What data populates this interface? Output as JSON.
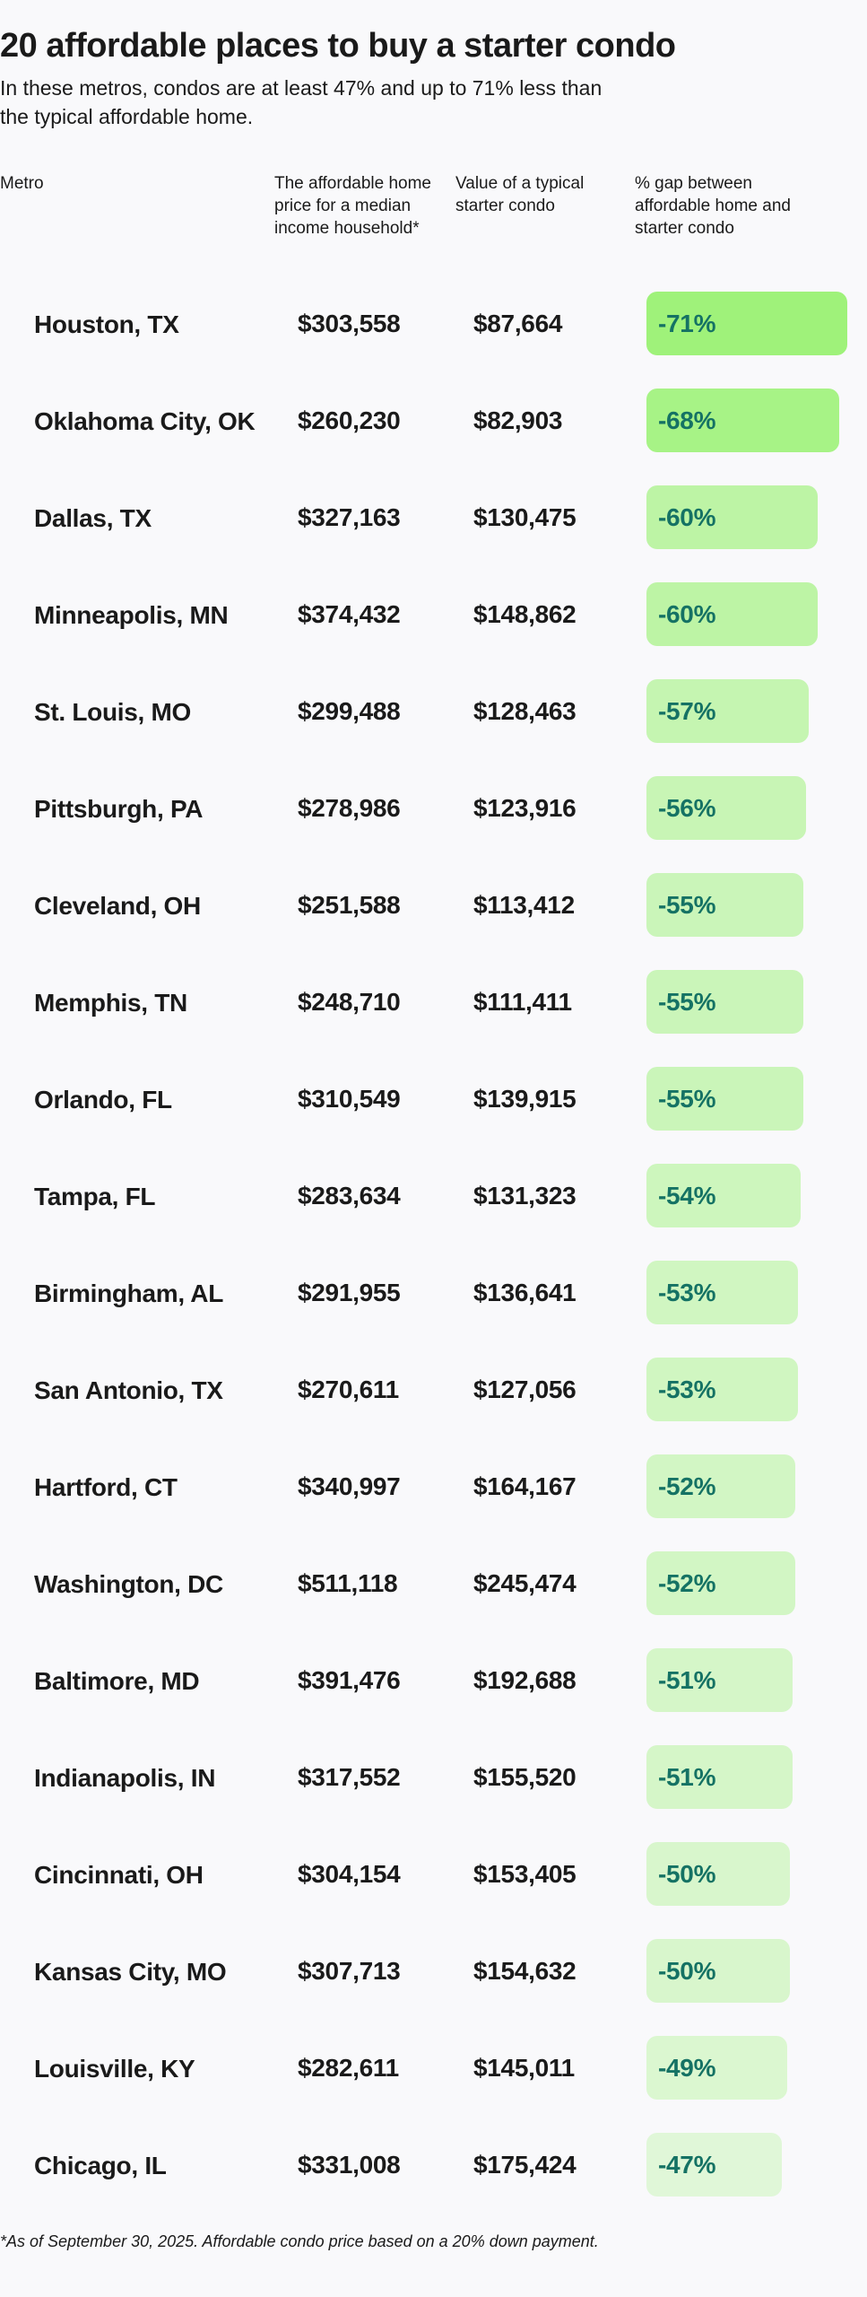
{
  "title": "20 affordable places to buy a starter condo",
  "subtitle": "In these metros, condos are at least 47% and up to 71% less than the typical affordable home.",
  "columns": {
    "metro": "Metro",
    "affordable": "The affordable home price for a median income household*",
    "condo": "Value of a typical starter condo",
    "gap": "% gap between affordable home and starter condo"
  },
  "footnote": "*As of September 30, 2025. Affordable condo price based on a 20% down payment.",
  "chart_data": {
    "type": "table",
    "rows": [
      {
        "metro": "Houston, TX",
        "affordable": "$303,558",
        "condo": "$87,664",
        "gap_label": "-71%",
        "gap": -71
      },
      {
        "metro": "Oklahoma City, OK",
        "affordable": "$260,230",
        "condo": "$82,903",
        "gap_label": "-68%",
        "gap": -68
      },
      {
        "metro": "Dallas, TX",
        "affordable": "$327,163",
        "condo": "$130,475",
        "gap_label": "-60%",
        "gap": -60
      },
      {
        "metro": "Minneapolis, MN",
        "affordable": "$374,432",
        "condo": "$148,862",
        "gap_label": "-60%",
        "gap": -60
      },
      {
        "metro": "St. Louis, MO",
        "affordable": "$299,488",
        "condo": "$128,463",
        "gap_label": "-57%",
        "gap": -57
      },
      {
        "metro": "Pittsburgh, PA",
        "affordable": "$278,986",
        "condo": "$123,916",
        "gap_label": "-56%",
        "gap": -56
      },
      {
        "metro": "Cleveland, OH",
        "affordable": "$251,588",
        "condo": "$113,412",
        "gap_label": "-55%",
        "gap": -55
      },
      {
        "metro": "Memphis, TN",
        "affordable": "$248,710",
        "condo": "$111,411",
        "gap_label": "-55%",
        "gap": -55
      },
      {
        "metro": "Orlando, FL",
        "affordable": "$310,549",
        "condo": "$139,915",
        "gap_label": "-55%",
        "gap": -55
      },
      {
        "metro": "Tampa, FL",
        "affordable": "$283,634",
        "condo": "$131,323",
        "gap_label": "-54%",
        "gap": -54
      },
      {
        "metro": "Birmingham, AL",
        "affordable": "$291,955",
        "condo": "$136,641",
        "gap_label": "-53%",
        "gap": -53
      },
      {
        "metro": "San Antonio, TX",
        "affordable": "$270,611",
        "condo": "$127,056",
        "gap_label": "-53%",
        "gap": -53
      },
      {
        "metro": "Hartford, CT",
        "affordable": "$340,997",
        "condo": "$164,167",
        "gap_label": "-52%",
        "gap": -52
      },
      {
        "metro": "Washington, DC",
        "affordable": "$511,118",
        "condo": "$245,474",
        "gap_label": "-52%",
        "gap": -52
      },
      {
        "metro": "Baltimore, MD",
        "affordable": "$391,476",
        "condo": "$192,688",
        "gap_label": "-51%",
        "gap": -51
      },
      {
        "metro": "Indianapolis, IN",
        "affordable": "$317,552",
        "condo": "$155,520",
        "gap_label": "-51%",
        "gap": -51
      },
      {
        "metro": "Cincinnati, OH",
        "affordable": "$304,154",
        "condo": "$153,405",
        "gap_label": "-50%",
        "gap": -50
      },
      {
        "metro": "Kansas City, MO",
        "affordable": "$307,713",
        "condo": "$154,632",
        "gap_label": "-50%",
        "gap": -50
      },
      {
        "metro": "Louisville, KY",
        "affordable": "$282,611",
        "condo": "$145,011",
        "gap_label": "-49%",
        "gap": -49
      },
      {
        "metro": "Chicago, IL",
        "affordable": "$331,008",
        "condo": "$175,424",
        "gap_label": "-47%",
        "gap": -47
      }
    ],
    "bar_color_strong": "#9ff27a",
    "bar_color_light": "#e0f7d8",
    "label_color": "#157264"
  }
}
